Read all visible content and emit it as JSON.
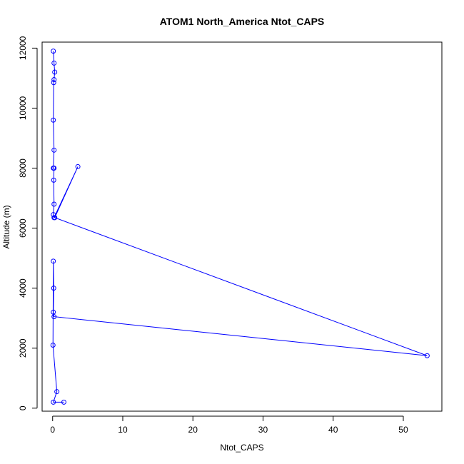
{
  "chart_data": {
    "type": "line",
    "title": "ATOM1 North_America Ntot_CAPS",
    "xlabel": "Ntot_CAPS",
    "ylabel": "Altitude (m)",
    "xlim": [
      -1.5,
      55.5
    ],
    "ylim": [
      -100,
      12200
    ],
    "xticks": [
      0,
      10,
      20,
      30,
      40,
      50
    ],
    "yticks": [
      0,
      2000,
      4000,
      6000,
      8000,
      10000,
      12000
    ],
    "grid": false,
    "series": [
      {
        "name": "",
        "color": "#0000ff",
        "marker": "open-circle",
        "points": [
          {
            "x": 0.1,
            "y": 11900
          },
          {
            "x": 0.2,
            "y": 11500
          },
          {
            "x": 0.3,
            "y": 11200
          },
          {
            "x": 0.2,
            "y": 10950
          },
          {
            "x": 0.15,
            "y": 10850
          },
          {
            "x": 0.1,
            "y": 9600
          },
          {
            "x": 0.2,
            "y": 8600
          },
          {
            "x": 0.1,
            "y": 8000
          },
          {
            "x": 0.2,
            "y": 8000
          },
          {
            "x": 0.15,
            "y": 7600
          },
          {
            "x": 0.2,
            "y": 6800
          },
          {
            "x": 0.1,
            "y": 6450
          },
          {
            "x": 0.2,
            "y": 6350
          },
          {
            "x": 3.6,
            "y": 8050
          },
          {
            "x": 0.3,
            "y": 6350
          },
          {
            "x": 53.4,
            "y": 1750
          },
          {
            "x": 0.2,
            "y": 3050
          },
          {
            "x": 0.1,
            "y": 3200
          },
          {
            "x": 0.15,
            "y": 4000
          },
          {
            "x": 0.1,
            "y": 4900
          },
          {
            "x": 0.05,
            "y": 2100
          },
          {
            "x": 0.6,
            "y": 550
          },
          {
            "x": 0.1,
            "y": 200
          },
          {
            "x": 1.6,
            "y": 200
          }
        ]
      }
    ]
  }
}
